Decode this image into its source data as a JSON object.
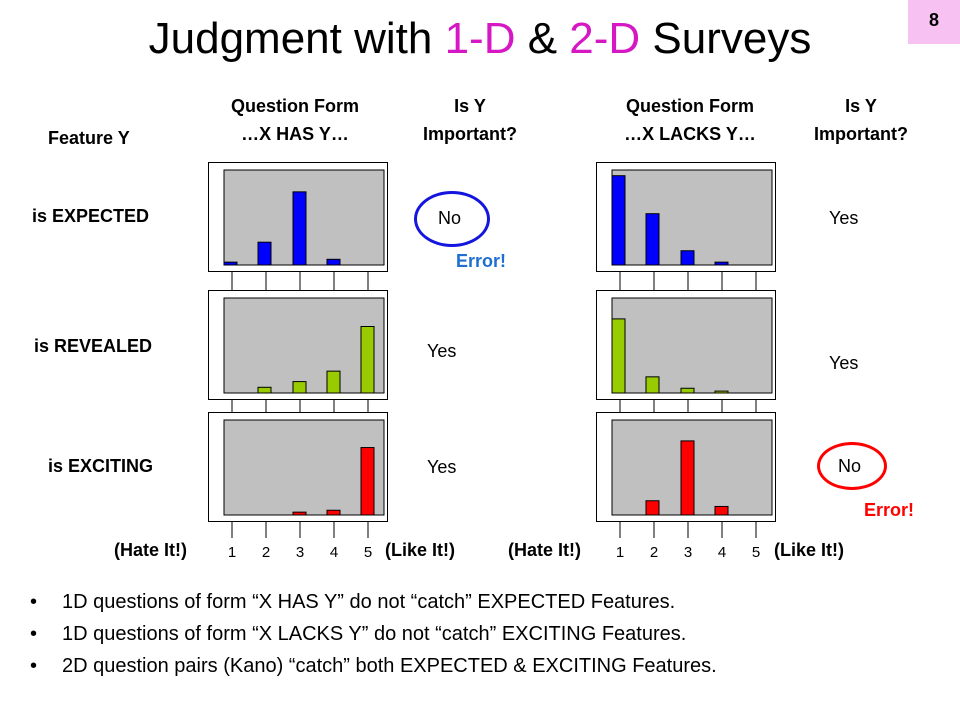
{
  "slide": {
    "number": "8",
    "title_parts": [
      "Judgment with ",
      "1-D",
      " & ",
      "2-D",
      " Surveys"
    ],
    "title_colors": [
      "#000000",
      "#d617c4",
      "#000000",
      "#d617c4",
      "#000000"
    ]
  },
  "headers": {
    "feature": "Feature Y",
    "left_form_1": "Question Form",
    "left_form_2": "…X HAS Y…",
    "left_imp_1": "Is Y",
    "left_imp_2": "Important?",
    "right_form_1": "Question Form",
    "right_form_2": "…X LACKS Y…",
    "right_imp_1": "Is Y",
    "right_imp_2": "Important?"
  },
  "rows": [
    {
      "label": "is EXPECTED",
      "has_answer": "No",
      "lacks_answer": "Yes"
    },
    {
      "label": "is REVEALED",
      "has_answer": "Yes",
      "lacks_answer": "Yes"
    },
    {
      "label": "is EXCITING",
      "has_answer": "Yes",
      "lacks_answer": "No"
    }
  ],
  "errors": {
    "has": "Error!",
    "lacks": "Error!"
  },
  "axis": {
    "low": "(Hate It!)",
    "high": "(Like It!)"
  },
  "bullets": [
    "1D questions of form “X HAS Y” do not “catch” EXPECTED Features.",
    "1D questions of form “X LACKS Y” do not “catch” EXCITING Features.",
    "2D question pairs (Kano) “catch” both EXPECTED & EXCITING Features."
  ],
  "colors": {
    "expected": "#0000ff",
    "revealed": "#99cc00",
    "exciting": "#ff0000",
    "plot_bg": "#c0c0c0",
    "error_blue": "#1e6fd0",
    "oval_blue": "#1515e0",
    "oval_red": "#ff0000"
  },
  "chart_data": [
    {
      "type": "bar",
      "id": "has-expected",
      "categories": [
        "1",
        "2",
        "3",
        "4",
        "5"
      ],
      "values": [
        3,
        24,
        77,
        6,
        0
      ],
      "ylim": [
        0,
        100
      ],
      "color": "#0000ff"
    },
    {
      "type": "bar",
      "id": "has-revealed",
      "categories": [
        "1",
        "2",
        "3",
        "4",
        "5"
      ],
      "values": [
        0,
        6,
        12,
        23,
        70
      ],
      "ylim": [
        0,
        100
      ],
      "color": "#99cc00"
    },
    {
      "type": "bar",
      "id": "has-exciting",
      "categories": [
        "1",
        "2",
        "3",
        "4",
        "5"
      ],
      "values": [
        0,
        0,
        3,
        5,
        71
      ],
      "ylim": [
        0,
        100
      ],
      "color": "#ff0000"
    },
    {
      "type": "bar",
      "id": "lacks-expected",
      "categories": [
        "1",
        "2",
        "3",
        "4",
        "5"
      ],
      "values": [
        94,
        54,
        15,
        3,
        0
      ],
      "ylim": [
        0,
        100
      ],
      "color": "#0000ff"
    },
    {
      "type": "bar",
      "id": "lacks-revealed",
      "categories": [
        "1",
        "2",
        "3",
        "4",
        "5"
      ],
      "values": [
        78,
        17,
        5,
        2,
        0
      ],
      "ylim": [
        0,
        100
      ],
      "color": "#99cc00"
    },
    {
      "type": "bar",
      "id": "lacks-exciting",
      "categories": [
        "1",
        "2",
        "3",
        "4",
        "5"
      ],
      "values": [
        0,
        15,
        78,
        9,
        0
      ],
      "ylim": [
        0,
        100
      ],
      "color": "#ff0000"
    }
  ]
}
